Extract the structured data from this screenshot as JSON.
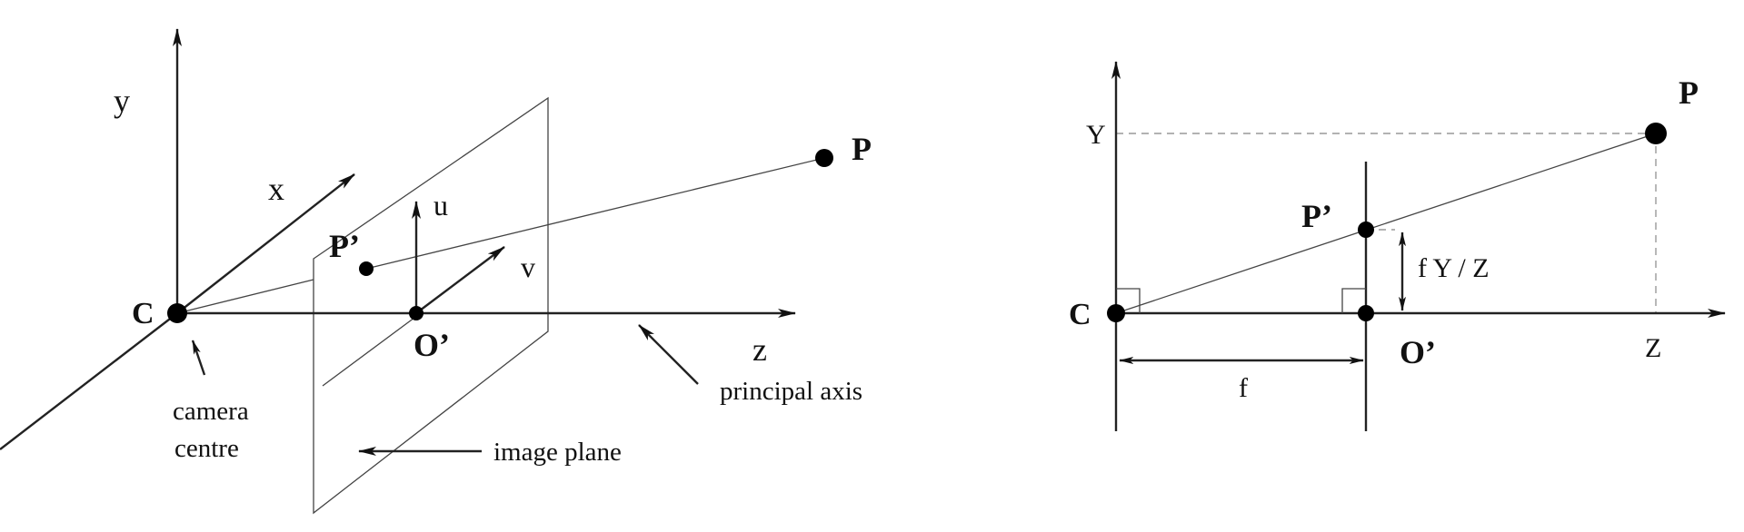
{
  "left_diagram": {
    "labels": {
      "y_axis": "y",
      "x_axis": "x",
      "z_axis": "z",
      "u_axis": "u",
      "v_axis": "v",
      "camera_point": "C",
      "point_p": "P",
      "point_p_prime": "P’",
      "point_o_prime": "O’",
      "camera_centre_line1": "camera",
      "camera_centre_line2": "centre",
      "principal_axis": "principal axis",
      "image_plane": "image plane"
    }
  },
  "right_diagram": {
    "labels": {
      "y_axis": "Y",
      "z_axis": "Z",
      "camera_point": "C",
      "point_p": "P",
      "point_p_prime": "P’",
      "point_o_prime": "O’",
      "focal_length": "f",
      "projection": "f Y / Z"
    }
  }
}
